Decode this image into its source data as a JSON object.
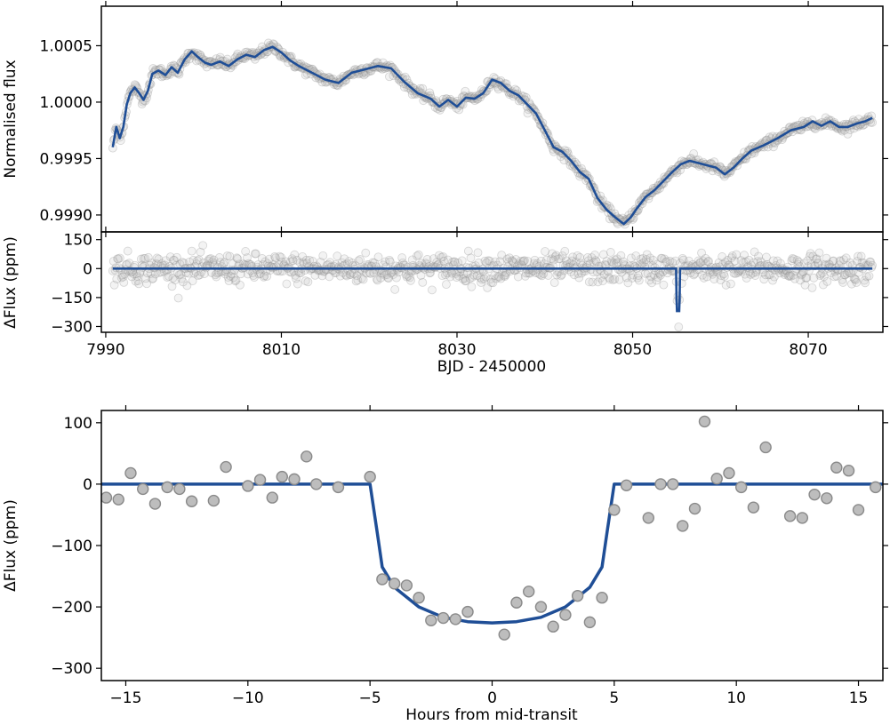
{
  "chart_data": [
    {
      "type": "line",
      "panel": "top",
      "title": "",
      "xlabel": "",
      "ylabel": "Normalised flux",
      "xlim": [
        7989.5,
        8078.5
      ],
      "ylim": [
        0.99885,
        1.00085
      ],
      "xticks": [
        7990,
        8010,
        8030,
        8050,
        8070
      ],
      "yticks": [
        0.999,
        0.9995,
        1.0,
        1.0005
      ],
      "ytick_labels": [
        "0.9990",
        "0.9995",
        "1.0000",
        "1.0005"
      ],
      "series": [
        {
          "name": "model",
          "color": "#1f4e96",
          "x": [
            7990.8,
            7991.2,
            7991.6,
            7992.0,
            7992.4,
            7992.8,
            7993.3,
            7993.8,
            7994.3,
            7994.8,
            7995.3,
            7996.0,
            7996.8,
            7997.5,
            7998.2,
            7999.0,
            7999.8,
            8000.5,
            8001.3,
            8002.0,
            8003.0,
            8004.0,
            8005.0,
            8006.0,
            8007.0,
            8008.0,
            8009.0,
            8010.0,
            8011.0,
            8012.0,
            8013.0,
            8014.0,
            8015.0,
            8016.5,
            8018.0,
            8019.5,
            8021.0,
            8022.5,
            8024.0,
            8025.5,
            8027.0,
            8028.0,
            8029.0,
            8030.0,
            8031.0,
            8032.0,
            8033.0,
            8034.0,
            8035.0,
            8036.0,
            8037.0,
            8038.0,
            8039.0,
            8040.0,
            8041.0,
            8042.0,
            8043.0,
            8044.0,
            8045.0,
            8046.0,
            8047.0,
            8048.0,
            8049.0,
            8049.8,
            8050.5,
            8051.5,
            8052.5,
            8053.5,
            8054.5,
            8055.5,
            8056.5,
            8057.5,
            8058.5,
            8059.5,
            8060.5,
            8061.5,
            8062.5,
            8063.5,
            8065.0,
            8066.5,
            8068.0,
            8069.5,
            8070.5,
            8071.5,
            8072.5,
            8073.5,
            8074.5,
            8075.5,
            8076.5,
            8077.3
          ],
          "y": [
            0.9996,
            0.99978,
            0.99968,
            0.99978,
            0.99998,
            1.00008,
            1.00013,
            1.00008,
            1.00002,
            1.0001,
            1.00025,
            1.00028,
            1.00024,
            1.00031,
            1.00026,
            1.00038,
            1.00045,
            1.0004,
            1.00035,
            1.00033,
            1.00036,
            1.00032,
            1.00038,
            1.00042,
            1.0004,
            1.00046,
            1.00049,
            1.00044,
            1.00037,
            1.00032,
            1.00028,
            1.00024,
            1.0002,
            1.00017,
            1.00026,
            1.00029,
            1.00032,
            1.0003,
            1.00018,
            1.00008,
            1.00003,
            0.99996,
            1.00002,
            0.99996,
            1.00004,
            1.00003,
            1.00008,
            1.0002,
            1.00017,
            1.0001,
            1.00006,
            0.99998,
            0.9999,
            0.99975,
            0.9996,
            0.99956,
            0.99948,
            0.99938,
            0.99932,
            0.99915,
            0.99905,
            0.99898,
            0.99892,
            0.99898,
            0.99906,
            0.99916,
            0.99922,
            0.9993,
            0.99938,
            0.99945,
            0.99948,
            0.99946,
            0.99944,
            0.99942,
            0.99936,
            0.99942,
            0.9995,
            0.99957,
            0.99962,
            0.99968,
            0.99975,
            0.99978,
            0.99983,
            0.99979,
            0.99983,
            0.99978,
            0.99978,
            0.99981,
            0.99983,
            0.99986
          ]
        }
      ],
      "scatter_note": "grey open circles: ~2-minute photometry points scattered around the model"
    },
    {
      "type": "line",
      "panel": "residuals",
      "title": "",
      "xlabel": "BJD - 2450000",
      "ylabel": "ΔFlux (ppm)",
      "xlim": [
        7989.5,
        8078.5
      ],
      "ylim": [
        -330,
        190
      ],
      "xticks": [
        7990,
        8010,
        8030,
        8050,
        8070
      ],
      "yticks": [
        -300,
        -150,
        0,
        150
      ],
      "ytick_labels": [
        "−300",
        "−150",
        "0",
        "150"
      ],
      "series": [
        {
          "name": "transit model",
          "color": "#1f4e96",
          "x": [
            7990.8,
            8054.95,
            8055.0,
            8055.05,
            8055.3,
            8055.35,
            8055.4,
            8077.3
          ],
          "y": [
            0,
            0,
            -150,
            -220,
            -220,
            -150,
            0,
            0
          ]
        }
      ],
      "scatter_note": "grey open circles scattered around 0 with ~±80 ppm spread; dip to ≈-230 ppm near 8055"
    },
    {
      "type": "scatter",
      "panel": "bottom",
      "title": "",
      "xlabel": "Hours from mid-transit",
      "ylabel": "ΔFlux (ppm)",
      "xlim": [
        -16,
        16
      ],
      "ylim": [
        -320,
        120
      ],
      "xticks": [
        -15,
        -10,
        -5,
        0,
        5,
        10,
        15
      ],
      "xtick_labels": [
        "−15",
        "−10",
        "−5",
        "0",
        "5",
        "10",
        "15"
      ],
      "yticks": [
        -300,
        -200,
        -100,
        0,
        100
      ],
      "ytick_labels": [
        "−300",
        "−200",
        "−100",
        "0",
        "100"
      ],
      "series": [
        {
          "name": "binned data",
          "color": "#bdbdbd",
          "x": [
            -15.8,
            -15.3,
            -14.8,
            -14.3,
            -13.8,
            -13.3,
            -12.8,
            -12.3,
            -11.4,
            -10.9,
            -10.0,
            -9.5,
            -9.0,
            -8.6,
            -8.1,
            -7.6,
            -7.2,
            -6.3,
            -5.0,
            -4.5,
            -4.0,
            -3.5,
            -3.0,
            -2.5,
            -2.0,
            -1.5,
            -1.0,
            0.5,
            1.0,
            1.5,
            2.0,
            2.5,
            3.0,
            3.5,
            4.0,
            4.5,
            5.0,
            5.5,
            6.4,
            6.9,
            7.4,
            7.8,
            8.3,
            8.7,
            9.2,
            9.7,
            10.2,
            10.7,
            11.2,
            12.2,
            12.7,
            13.2,
            13.7,
            14.1,
            14.6,
            15.0,
            15.7
          ],
          "y": [
            -22,
            -25,
            18,
            -8,
            -32,
            -5,
            -8,
            -28,
            -27,
            28,
            -3,
            7,
            -22,
            12,
            8,
            45,
            0,
            -5,
            12,
            -155,
            -162,
            -165,
            -185,
            -222,
            -218,
            -220,
            -208,
            -245,
            -193,
            -175,
            -200,
            -232,
            -213,
            -182,
            -225,
            -185,
            -42,
            -2,
            -55,
            0,
            0,
            -68,
            -40,
            102,
            9,
            18,
            -5,
            -38,
            60,
            -52,
            -55,
            -17,
            -23,
            27,
            22,
            -42,
            -5
          ]
        },
        {
          "name": "transit model",
          "color": "#1f4e96",
          "x": [
            -16,
            -5.0,
            -4.7,
            -4.5,
            -4.0,
            -3.0,
            -2.0,
            -1.0,
            0.0,
            1.0,
            2.0,
            3.0,
            4.0,
            4.5,
            4.7,
            5.0,
            16
          ],
          "y": [
            0,
            0,
            -80,
            -135,
            -168,
            -200,
            -217,
            -224,
            -226,
            -224,
            -217,
            -200,
            -168,
            -135,
            -80,
            0,
            0
          ]
        }
      ]
    }
  ]
}
